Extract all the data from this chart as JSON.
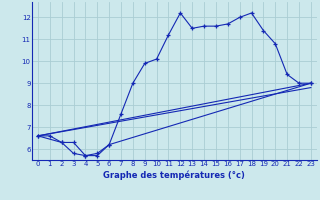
{
  "xlabel": "Graphe des températures (°c)",
  "bg_color": "#cce8ec",
  "line_color": "#1428b4",
  "grid_color": "#aacdd4",
  "xlim": [
    -0.5,
    23.5
  ],
  "ylim": [
    5.5,
    12.7
  ],
  "xticks": [
    0,
    1,
    2,
    3,
    4,
    5,
    6,
    7,
    8,
    9,
    10,
    11,
    12,
    13,
    14,
    15,
    16,
    17,
    18,
    19,
    20,
    21,
    22,
    23
  ],
  "yticks": [
    6,
    7,
    8,
    9,
    10,
    11,
    12
  ],
  "line1_x": [
    0,
    1,
    2,
    3,
    4,
    5,
    6,
    7,
    8,
    9,
    10,
    11,
    12,
    13,
    14,
    15,
    16,
    17,
    18,
    19,
    20,
    21,
    22,
    23
  ],
  "line1_y": [
    6.6,
    6.6,
    6.3,
    5.8,
    5.7,
    5.8,
    6.2,
    7.6,
    9.0,
    9.9,
    10.1,
    11.2,
    12.2,
    11.5,
    11.6,
    11.6,
    11.7,
    12.0,
    12.2,
    11.4,
    10.8,
    9.4,
    9.0,
    9.0
  ],
  "line2_x": [
    0,
    2,
    3,
    4,
    5,
    6,
    23
  ],
  "line2_y": [
    6.6,
    6.3,
    6.3,
    5.7,
    5.7,
    6.2,
    9.0
  ],
  "line3_x": [
    0,
    23
  ],
  "line3_y": [
    6.6,
    9.0
  ],
  "line4_x": [
    0,
    23
  ],
  "line4_y": [
    6.6,
    8.8
  ],
  "xlabel_fontsize": 6.0,
  "tick_fontsize": 5.0
}
